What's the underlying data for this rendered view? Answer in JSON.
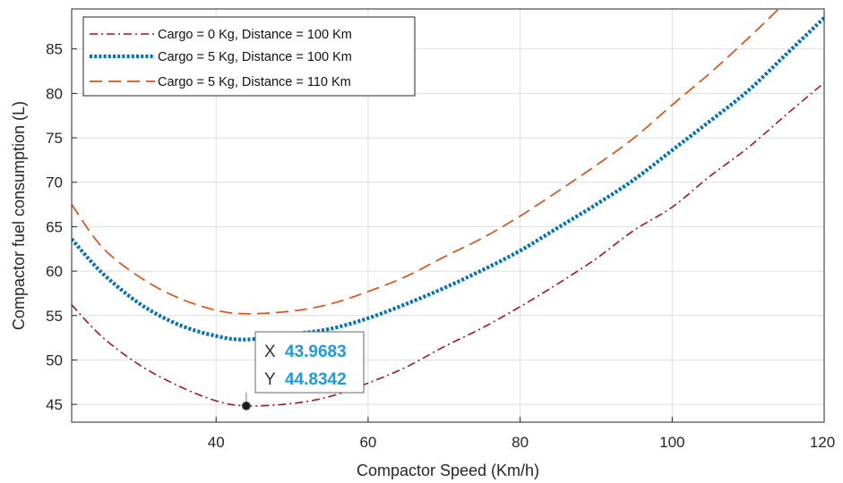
{
  "chart_data": {
    "type": "line",
    "title": "",
    "xlabel": "Compactor Speed (Km/h)",
    "ylabel": "Compactor fuel consumption (L)",
    "xlim": [
      21,
      120
    ],
    "ylim": [
      43,
      89.5
    ],
    "xticks": [
      40,
      60,
      80,
      100,
      120
    ],
    "yticks": [
      45,
      50,
      55,
      60,
      65,
      70,
      75,
      80,
      85
    ],
    "grid": true,
    "legend_position": "top-left",
    "series": [
      {
        "name": "Cargo = 0 Kg, Distance = 100 Km",
        "color": "#a2142f",
        "line_style": "dash-dot",
        "x": [
          21,
          25,
          30,
          35,
          40,
          43.97,
          50,
          55,
          60,
          65,
          70,
          75,
          80,
          85,
          90,
          95,
          100,
          105,
          110,
          115,
          120
        ],
        "y": [
          56.2,
          52.6,
          49.4,
          47.1,
          45.4,
          44.83,
          45.1,
          45.9,
          47.4,
          49.2,
          51.5,
          53.6,
          56.0,
          58.6,
          61.4,
          64.6,
          67.2,
          70.7,
          73.9,
          77.6,
          81.2
        ]
      },
      {
        "name": "Cargo = 5 Kg, Distance = 100 Km",
        "color": "#0072bd",
        "line_style": "dotted",
        "x": [
          21,
          25,
          30,
          35,
          40,
          44,
          50,
          55,
          60,
          65,
          70,
          75,
          80,
          85,
          90,
          95,
          100,
          105,
          110,
          115,
          120
        ],
        "y": [
          63.6,
          59.8,
          56.3,
          54.0,
          52.7,
          52.3,
          52.9,
          53.5,
          54.7,
          56.3,
          58.1,
          60.1,
          62.3,
          64.9,
          67.5,
          70.3,
          73.6,
          76.9,
          80.3,
          84.4,
          88.5
        ]
      },
      {
        "name": "Cargo = 5 Kg, Distance = 110 Km",
        "color": "#d95319",
        "line_style": "dashed",
        "x": [
          21,
          25,
          30,
          35,
          40,
          44,
          50,
          55,
          60,
          65,
          70,
          75,
          80,
          85,
          90,
          95,
          100,
          105,
          110,
          114
        ],
        "y": [
          67.5,
          62.7,
          59.3,
          57.0,
          55.6,
          55.2,
          55.5,
          56.3,
          57.7,
          59.4,
          61.6,
          63.7,
          66.2,
          69.0,
          71.9,
          75.0,
          78.7,
          82.3,
          86.2,
          89.5
        ]
      }
    ],
    "datatip": {
      "x_label": "X",
      "x_value": "43.9683",
      "y_label": "Y",
      "y_value": "44.8342",
      "point_x": 43.9683,
      "point_y": 44.8342
    }
  }
}
